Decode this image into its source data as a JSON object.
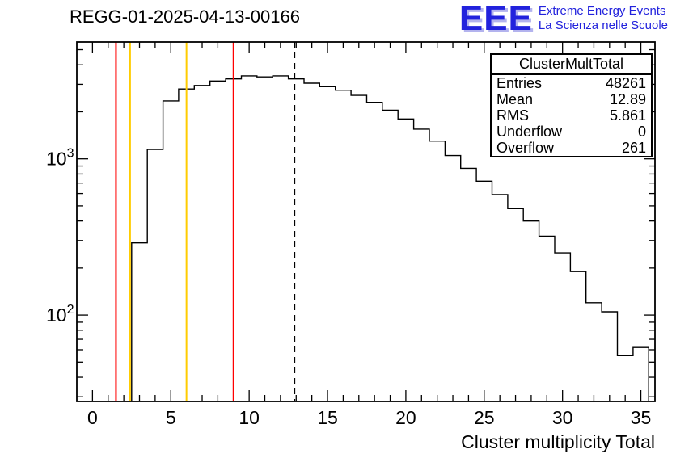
{
  "header": {
    "title": "REGG-01-2025-04-13-00166",
    "logo": {
      "text": "EEE",
      "line1": "Extreme Energy Events",
      "line2": "La Scienza nelle Scuole",
      "color": "#2222dd"
    }
  },
  "stats_box": {
    "title": "ClusterMultTotal",
    "rows": [
      {
        "label": "Entries",
        "value": "48261"
      },
      {
        "label": "Mean",
        "value": "12.89"
      },
      {
        "label": "RMS",
        "value": "5.861"
      },
      {
        "label": "Underflow",
        "value": "0"
      },
      {
        "label": "Overflow",
        "value": "261"
      }
    ]
  },
  "chart_data": {
    "type": "histogram",
    "title": "REGG-01-2025-04-13-00166",
    "xlabel": "Cluster multiplicity Total",
    "ylabel": "",
    "y_scale": "log",
    "grid": false,
    "legend_position": "none",
    "x_range": [
      -1,
      35.9
    ],
    "y_range": [
      28,
      5600
    ],
    "x_ticks": [
      0,
      5,
      10,
      15,
      20,
      25,
      30,
      35
    ],
    "y_ticks": [
      {
        "value": 100,
        "base": "10",
        "exp": "2"
      },
      {
        "value": 1000,
        "base": "10",
        "exp": "3"
      }
    ],
    "line_color": "#000000",
    "bins": {
      "start": 2.5,
      "width": 1,
      "counts": [
        290,
        1150,
        2350,
        2800,
        2950,
        3150,
        3250,
        3400,
        3350,
        3400,
        3250,
        3050,
        2900,
        2750,
        2550,
        2300,
        2050,
        1800,
        1550,
        1300,
        1050,
        870,
        720,
        590,
        480,
        400,
        320,
        250,
        190,
        120,
        105,
        55,
        62
      ]
    },
    "marker_lines": [
      {
        "x": 1.5,
        "color": "#ff0000",
        "style": "solid",
        "name": "red-marker-1"
      },
      {
        "x": 2.4,
        "color": "#ffcc00",
        "style": "solid",
        "name": "yellow-marker-1"
      },
      {
        "x": 6.0,
        "color": "#ffcc00",
        "style": "solid",
        "name": "yellow-marker-2"
      },
      {
        "x": 9.0,
        "color": "#ff0000",
        "style": "solid",
        "name": "red-marker-2"
      },
      {
        "x": 12.9,
        "color": "#000000",
        "style": "dashed",
        "name": "mean-dashed-line"
      }
    ]
  }
}
